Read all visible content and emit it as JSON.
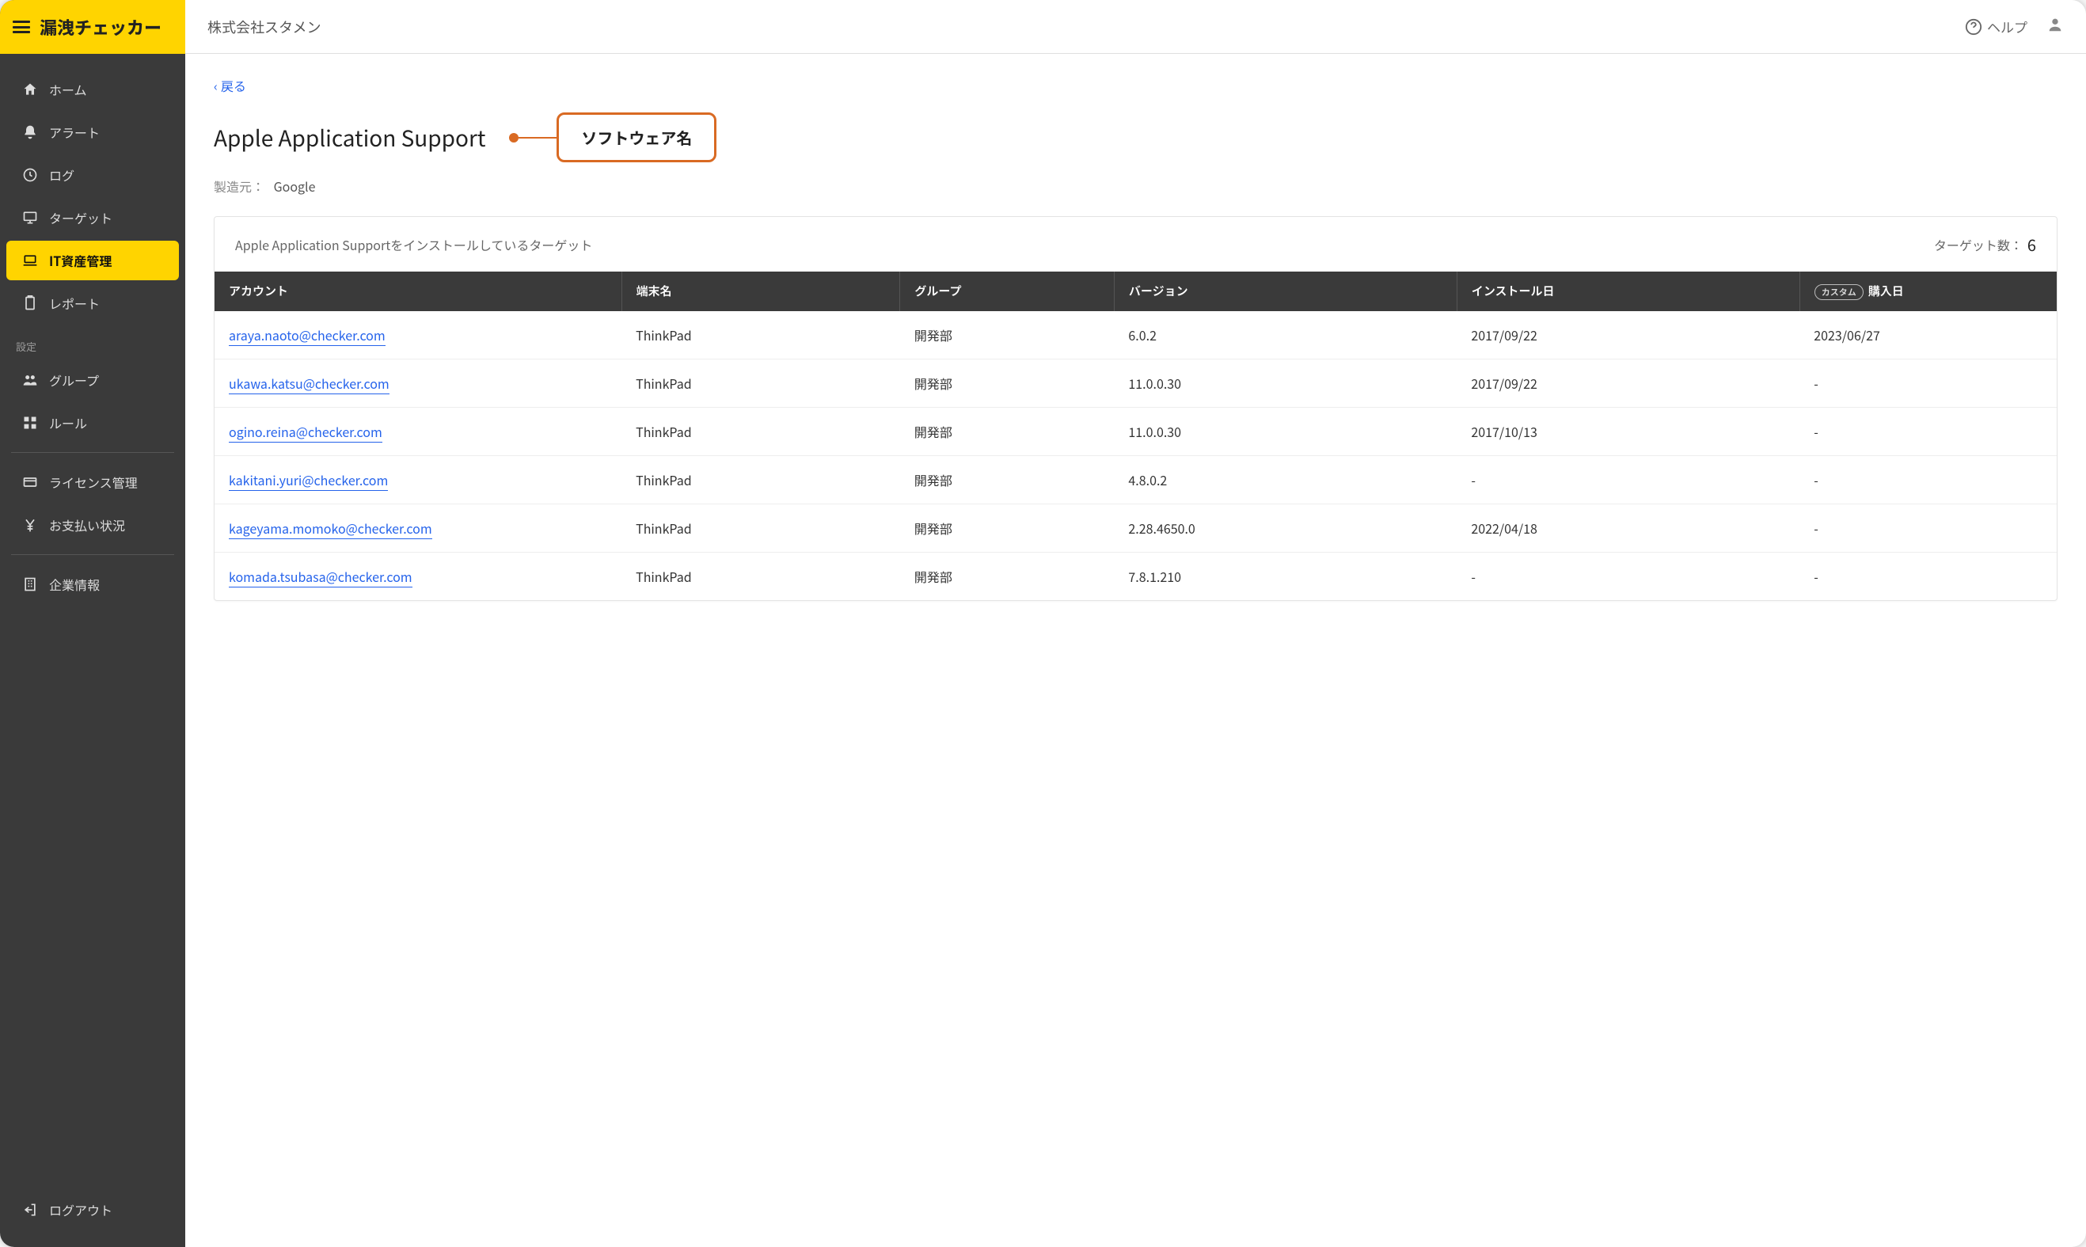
{
  "brand": {
    "title": "漏洩チェッカー"
  },
  "topbar": {
    "org_name": "株式会社スタメン",
    "help_label": "ヘルプ"
  },
  "sidebar": {
    "items": [
      {
        "key": "home",
        "label": "ホーム"
      },
      {
        "key": "alert",
        "label": "アラート"
      },
      {
        "key": "log",
        "label": "ログ"
      },
      {
        "key": "target",
        "label": "ターゲット"
      },
      {
        "key": "it-asset",
        "label": "IT資産管理"
      },
      {
        "key": "report",
        "label": "レポート"
      }
    ],
    "section_label": "設定",
    "settings_items": [
      {
        "key": "group",
        "label": "グループ"
      },
      {
        "key": "rule",
        "label": "ルール"
      }
    ],
    "admin_items": [
      {
        "key": "license",
        "label": "ライセンス管理"
      },
      {
        "key": "payment",
        "label": "お支払い状況"
      }
    ],
    "company_item": {
      "key": "company",
      "label": "企業情報"
    },
    "logout": {
      "label": "ログアウト"
    }
  },
  "page": {
    "back_label": "戻る",
    "title": "Apple Application Support",
    "callout": "ソフトウェア名",
    "manufacturer_label": "製造元：",
    "manufacturer_value": "Google"
  },
  "panel": {
    "caption_prefix": "Apple Application Support",
    "caption_suffix": " をインストールしているターゲット",
    "count_label": "ターゲット数：",
    "count_value": "6"
  },
  "table": {
    "columns": [
      {
        "key": "account",
        "label": "アカウント",
        "width": "19%"
      },
      {
        "key": "host",
        "label": "端末名",
        "width": "13%"
      },
      {
        "key": "group",
        "label": "グループ",
        "width": "10%"
      },
      {
        "key": "version",
        "label": "バージョン",
        "width": "16%"
      },
      {
        "key": "install_date",
        "label": "インストール日",
        "width": "16%"
      },
      {
        "key": "purchase_date",
        "label": "購入日",
        "width": "12%",
        "custom_badge": "カスタム"
      }
    ],
    "rows": [
      {
        "account": "araya.naoto@checker.com",
        "host": "ThinkPad",
        "group": "開発部",
        "version": "6.0.2",
        "install_date": "2017/09/22",
        "purchase_date": "2023/06/27"
      },
      {
        "account": "ukawa.katsu@checker.com",
        "host": "ThinkPad",
        "group": "開発部",
        "version": "11.0.0.30",
        "install_date": "2017/09/22",
        "purchase_date": "-"
      },
      {
        "account": "ogino.reina@checker.com",
        "host": "ThinkPad",
        "group": "開発部",
        "version": "11.0.0.30",
        "install_date": "2017/10/13",
        "purchase_date": "-"
      },
      {
        "account": "kakitani.yuri@checker.com",
        "host": "ThinkPad",
        "group": "開発部",
        "version": "4.8.0.2",
        "install_date": "-",
        "purchase_date": "-"
      },
      {
        "account": "kageyama.momoko@checker.com",
        "host": "ThinkPad",
        "group": "開発部",
        "version": "2.28.4650.0",
        "install_date": "2022/04/18",
        "purchase_date": "-"
      },
      {
        "account": "komada.tsubasa@checker.com",
        "host": "ThinkPad",
        "group": "開発部",
        "version": "7.8.1.210",
        "install_date": "-",
        "purchase_date": "-"
      }
    ]
  },
  "colors": {
    "brand_bg": "#ffd400",
    "sidebar_bg": "#3a3a3a",
    "accent_link": "#2563eb",
    "callout": "#d96a23"
  }
}
